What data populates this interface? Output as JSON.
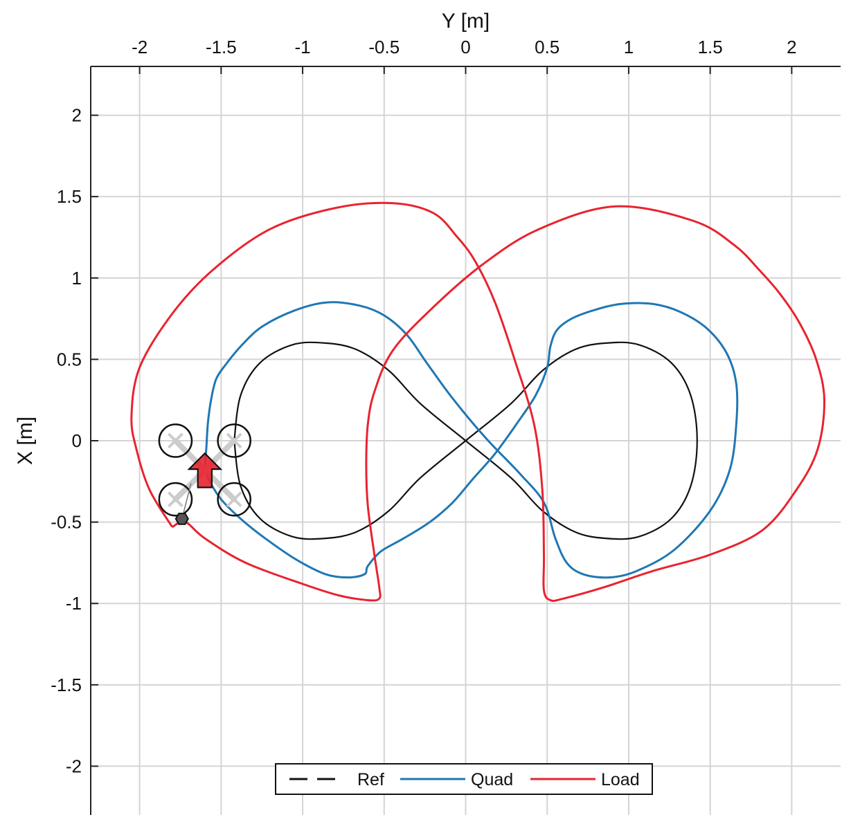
{
  "chart_data": {
    "type": "line",
    "title": "",
    "xlabel": "Y [m]",
    "ylabel": "X [m]",
    "xlim": [
      -2.3,
      2.3
    ],
    "ylim": [
      -2.3,
      2.3
    ],
    "x_ticks": [
      -2,
      -1.5,
      -1,
      -0.5,
      0,
      0.5,
      1,
      1.5,
      2
    ],
    "y_ticks": [
      -2,
      -1.5,
      -1,
      -0.5,
      0,
      0.5,
      1,
      1.5,
      2
    ],
    "x_tick_labels": [
      "-2",
      "-1.5",
      "-1",
      "-0.5",
      "0",
      "0.5",
      "1",
      "1.5",
      "2"
    ],
    "y_tick_labels": [
      "-2",
      "-1.5",
      "-1",
      "-0.5",
      "0",
      "0.5",
      "1",
      "1.5",
      "2"
    ],
    "x_axis_position": "top",
    "grid": true,
    "legend": {
      "placement": "bottom-center",
      "entries": [
        "Ref",
        "Quad",
        "Load"
      ]
    },
    "series": [
      {
        "name": "Ref",
        "color": "#111111",
        "style": "solid",
        "x": [
          -1.42,
          -1.38,
          -1.26,
          -1.06,
          -0.86,
          -0.67,
          -0.47,
          -0.28,
          0,
          0.28,
          0.47,
          0.67,
          0.86,
          1.06,
          1.26,
          1.38,
          1.42,
          1.38,
          1.26,
          1.06,
          0.86,
          0.67,
          0.47,
          0.28,
          0,
          -0.28,
          -0.47,
          -0.67,
          -0.86,
          -1.06,
          -1.26,
          -1.38,
          -1.42
        ],
        "y": [
          0,
          0.28,
          0.48,
          0.59,
          0.6,
          0.56,
          0.43,
          0.23,
          0,
          -0.23,
          -0.43,
          -0.56,
          -0.6,
          -0.59,
          -0.48,
          -0.28,
          0,
          0.28,
          0.48,
          0.59,
          0.6,
          0.56,
          0.43,
          0.23,
          0,
          -0.23,
          -0.43,
          -0.56,
          -0.6,
          -0.59,
          -0.48,
          -0.28,
          0
        ]
      },
      {
        "name": "Quad",
        "color": "#1f77b4",
        "style": "solid",
        "x": [
          -1.6,
          -1.59,
          -1.58,
          -1.56,
          -1.53,
          -1.47,
          -1.38,
          -1.25,
          -1.05,
          -0.85,
          -0.65,
          -0.5,
          -0.36,
          -0.24,
          -0.08,
          0.12,
          0.33,
          0.48,
          0.55,
          0.62,
          0.72,
          0.88,
          1.05,
          1.28,
          1.5,
          1.62,
          1.66,
          1.66,
          1.6,
          1.48,
          1.32,
          1.15,
          0.95,
          0.78,
          0.65,
          0.56,
          0.52,
          0.5,
          0.43,
          0.31,
          0.18,
          0.04,
          -0.08,
          -0.22,
          -0.38,
          -0.52,
          -0.6,
          -0.62,
          -0.72,
          -0.86,
          -1.04,
          -1.23,
          -1.38,
          -1.5,
          -1.57,
          -1.6
        ],
        "y": [
          -0.18,
          -0.03,
          0.12,
          0.26,
          0.38,
          0.47,
          0.58,
          0.7,
          0.8,
          0.85,
          0.83,
          0.77,
          0.65,
          0.48,
          0.26,
          0.02,
          -0.2,
          -0.38,
          -0.6,
          -0.75,
          -0.82,
          -0.84,
          -0.8,
          -0.67,
          -0.43,
          -0.18,
          0.1,
          0.35,
          0.54,
          0.69,
          0.79,
          0.84,
          0.84,
          0.8,
          0.75,
          0.68,
          0.58,
          0.45,
          0.28,
          0.1,
          -0.08,
          -0.24,
          -0.38,
          -0.5,
          -0.6,
          -0.68,
          -0.77,
          -0.82,
          -0.84,
          -0.82,
          -0.73,
          -0.6,
          -0.48,
          -0.36,
          -0.25,
          -0.18
        ]
      },
      {
        "name": "Load",
        "color": "#e8232e",
        "style": "solid",
        "x": [
          -1.8,
          -1.72,
          -1.6,
          -1.35,
          -1.0,
          -0.78,
          -0.6,
          -0.53,
          -0.53,
          -0.56,
          -0.6,
          -0.61,
          -0.6,
          -0.56,
          -0.45,
          -0.22,
          0.1,
          0.45,
          0.92,
          1.4,
          1.65,
          1.8,
          1.93,
          2.05,
          2.15,
          2.2,
          2.16,
          2.03,
          1.82,
          1.5,
          1.15,
          0.85,
          0.6,
          0.52,
          0.48,
          0.48,
          0.47,
          0.42,
          0.3,
          0.18,
          0.06,
          -0.05,
          -0.2,
          -0.45,
          -0.8,
          -1.2,
          -1.55,
          -1.8,
          -2.0,
          -2.05,
          -2.02,
          -1.94,
          -1.8
        ],
        "y": [
          -0.53,
          -0.5,
          -0.6,
          -0.75,
          -0.88,
          -0.95,
          -0.98,
          -0.97,
          -0.9,
          -0.7,
          -0.4,
          -0.15,
          0.1,
          0.3,
          0.55,
          0.8,
          1.08,
          1.3,
          1.44,
          1.35,
          1.2,
          1.05,
          0.9,
          0.72,
          0.5,
          0.25,
          -0.05,
          -0.3,
          -0.55,
          -0.7,
          -0.8,
          -0.9,
          -0.97,
          -0.98,
          -0.92,
          -0.7,
          -0.3,
          0.1,
          0.5,
          0.85,
          1.1,
          1.25,
          1.4,
          1.46,
          1.43,
          1.3,
          1.05,
          0.78,
          0.45,
          0.15,
          -0.05,
          -0.3,
          -0.53
        ]
      }
    ],
    "annotations": {
      "quadrotor": {
        "center": [
          -1.6,
          -0.18
        ],
        "arm_length": 0.18,
        "rotor_radius": 0.1,
        "color": "#e8232e"
      },
      "payload": {
        "position": [
          -1.74,
          -0.48
        ],
        "color": "#555555"
      }
    }
  }
}
